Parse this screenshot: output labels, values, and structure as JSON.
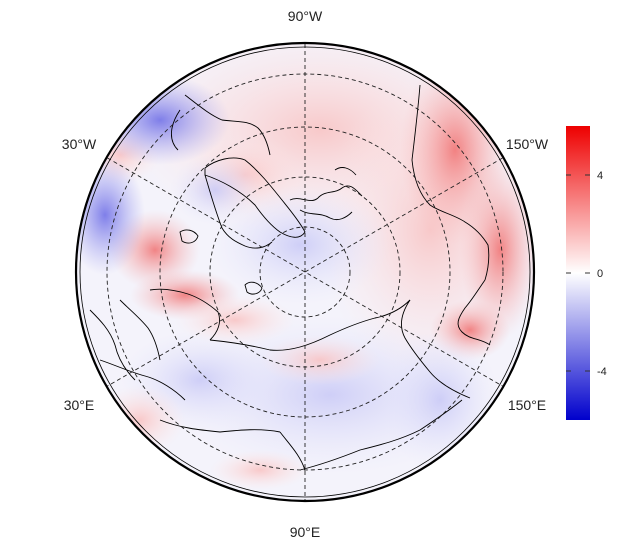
{
  "map": {
    "projection": "north-polar-stereographic",
    "longitude_labels": {
      "top": "90°W",
      "bottom": "90°E",
      "upper_left": "30°W",
      "upper_right": "150°W",
      "lower_left": "30°E",
      "lower_right": "150°E"
    }
  },
  "colorbar": {
    "ticks": [
      {
        "value": 4,
        "label": "4"
      },
      {
        "value": 0,
        "label": "0"
      },
      {
        "value": -4,
        "label": "-4"
      }
    ],
    "range": [
      -6,
      6
    ],
    "colors": {
      "low": "#0000cc",
      "mid": "#ffffff",
      "high": "#ee0000"
    }
  },
  "chart_data": {
    "type": "heatmap",
    "title": "",
    "colorbar_ticks": [
      -4,
      0,
      4
    ],
    "colorbar_range": [
      -6,
      6
    ],
    "gridlines": true,
    "color_scale": [
      "#0000cc",
      "#ffffff",
      "#ee0000"
    ]
  }
}
